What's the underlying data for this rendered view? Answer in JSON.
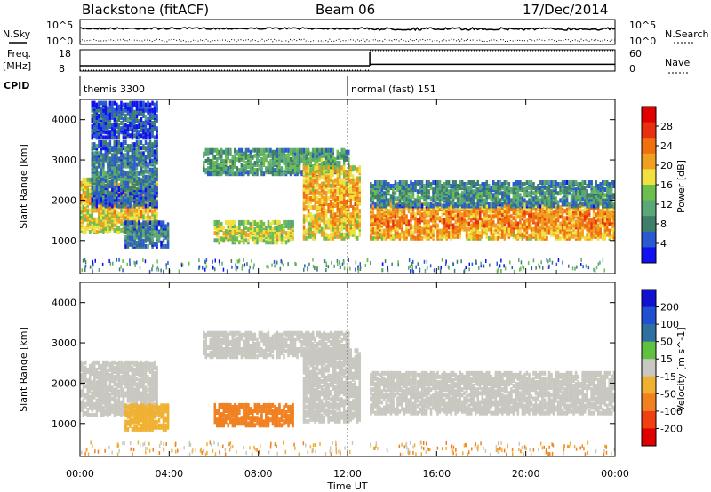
{
  "header": {
    "radar": "Blackstone (fitACF)",
    "beam": "Beam 06",
    "date": "17/Dec/2014"
  },
  "params": {
    "nsky_label": "N.Sky",
    "nsearch_label": "N.Search",
    "freq_label_1": "Freq.",
    "freq_label_2": "[MHz]",
    "nave_label": "Nave",
    "cpid_label": "CPID",
    "nsky_ticks": [
      "10^5",
      "10^0"
    ],
    "nsearch_ticks": [
      "10^5",
      "10^0"
    ],
    "freq_ticks": [
      "18",
      "8"
    ],
    "nave_ticks": [
      "60",
      "0"
    ],
    "cpid_segments": [
      {
        "start_hour": 0,
        "end_hour": 12.0,
        "label": "themis 3300"
      },
      {
        "start_hour": 12.0,
        "end_hour": 24,
        "label": "normal (fast) 151"
      }
    ],
    "freq_mhz": [
      {
        "start_hour": 0,
        "end_hour": 13,
        "value": 10.5
      },
      {
        "start_hour": 13,
        "end_hour": 24,
        "value": 11.2
      }
    ],
    "nave": [
      {
        "start_hour": 0,
        "end_hour": 13,
        "value": 0
      },
      {
        "start_hour": 13,
        "end_hour": 24,
        "value": 60
      }
    ]
  },
  "xaxis": {
    "label": "Time UT",
    "ticks": [
      "00:00",
      "04:00",
      "08:00",
      "12:00",
      "16:00",
      "20:00",
      "00:00"
    ],
    "range_hours": [
      0,
      24
    ]
  },
  "chart_data": [
    {
      "type": "heatmap",
      "name": "power",
      "ylabel": "Slant Range [km]",
      "yticks": [
        "1000",
        "2000",
        "3000",
        "4000"
      ],
      "ylim": [
        180,
        4500
      ],
      "colorbar_label": "Power [dB]",
      "colorbar_ticks": [
        "4",
        "8",
        "12",
        "16",
        "20",
        "24",
        "28"
      ],
      "colorbar_range": [
        0,
        32
      ],
      "colors": [
        "#1010f0",
        "#2a5ad0",
        "#3f7f6a",
        "#5aa878",
        "#6cbf4c",
        "#f0e040",
        "#f0a020",
        "#f07010",
        "#e83010",
        "#e00000"
      ],
      "bands": [
        {
          "name": "early-band",
          "t0": 0,
          "t1": 3.5,
          "r0": 1150,
          "r1": 2500,
          "power": 20
        },
        {
          "name": "morning-ridge",
          "t0": 0.5,
          "t1": 3.5,
          "r0": 1800,
          "r1": 3400,
          "power": 8
        },
        {
          "name": "high-arc",
          "t0": 0.5,
          "t1": 3.5,
          "r0": 3500,
          "r1": 4400,
          "power": 5
        },
        {
          "name": "low-band",
          "t0": 2,
          "t1": 4,
          "r0": 800,
          "r1": 1400,
          "power": 8
        },
        {
          "name": "midday-low",
          "t0": 6,
          "t1": 9.5,
          "r0": 900,
          "r1": 1400,
          "power": 18
        },
        {
          "name": "midday-upper",
          "t0": 5.5,
          "t1": 12,
          "r0": 2600,
          "r1": 3200,
          "power": 12
        },
        {
          "name": "afternoon-band",
          "t0": 10,
          "t1": 12.5,
          "r0": 1000,
          "r1": 2800,
          "power": 22
        },
        {
          "name": "evening-main",
          "t0": 13,
          "t1": 24,
          "r0": 1000,
          "r1": 1900,
          "power": 24
        },
        {
          "name": "evening-upper",
          "t0": 13,
          "t1": 24,
          "r0": 1800,
          "r1": 2400,
          "power": 10
        }
      ]
    },
    {
      "type": "heatmap",
      "name": "velocity",
      "ylabel": "Slant Range [km]",
      "yticks": [
        "1000",
        "2000",
        "3000",
        "4000"
      ],
      "ylim": [
        180,
        4500
      ],
      "colorbar_label": "Velocity [m s^-1]",
      "colorbar_ticks": [
        "200",
        "100",
        "50",
        "15",
        "-15",
        "-50",
        "-100",
        "-200"
      ],
      "colorbar_range": [
        -250,
        250
      ],
      "colors": [
        "#1010d0",
        "#2050d0",
        "#3070a0",
        "#60c040",
        "#c8c8c0",
        "#f0b030",
        "#f08020",
        "#f04010",
        "#e00000"
      ],
      "bands": [
        {
          "name": "early-grey",
          "t0": 0,
          "t1": 3.5,
          "r0": 1150,
          "r1": 2500,
          "velocity": 0
        },
        {
          "name": "morning-orange",
          "t0": 2,
          "t1": 4,
          "r0": 800,
          "r1": 1400,
          "velocity": -60
        },
        {
          "name": "midday-red",
          "t0": 6,
          "t1": 9.5,
          "r0": 900,
          "r1": 1400,
          "velocity": -120
        },
        {
          "name": "midday-grey",
          "t0": 5.5,
          "t1": 12,
          "r0": 2600,
          "r1": 3200,
          "velocity": 0
        },
        {
          "name": "afternoon-grey",
          "t0": 10,
          "t1": 12.5,
          "r0": 1000,
          "r1": 2800,
          "velocity": 0
        },
        {
          "name": "evening-grey",
          "t0": 13,
          "t1": 24,
          "r0": 1200,
          "r1": 2200,
          "velocity": 0
        }
      ]
    }
  ]
}
